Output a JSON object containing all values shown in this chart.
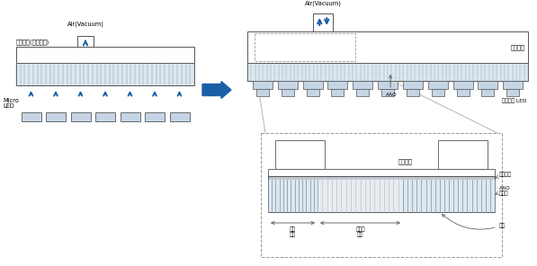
{
  "fig_width": 5.97,
  "fig_height": 2.96,
  "bg_color": "#ffffff",
  "label_transfer_head": "전사헤드(진공흡착)",
  "label_air_vacuum": "Air(Vacuum)",
  "label_micro_led_left": "Micro\nLED",
  "label_vacuum_chamber_right": "진공챔버",
  "label_aao": "AAO",
  "label_micro_led_right": "마이크로 LED",
  "label_vacuum_chamber_bottom": "진공챔버",
  "label_barrier": "베리어층",
  "label_aao_porous": "AAO\n다공층",
  "label_pore": "기공",
  "label_active": "홀착\n영역",
  "label_inactive": "비홀착\n영역",
  "arrow_color": "#1a5fa8",
  "line_color": "#555555",
  "porous_line_color": "#8898aa",
  "led_fill": "#c5d5e5",
  "porous_bg": "#dce8f0",
  "font_size_label": 5.5,
  "font_size_small": 4.8,
  "font_size_tiny": 4.2
}
